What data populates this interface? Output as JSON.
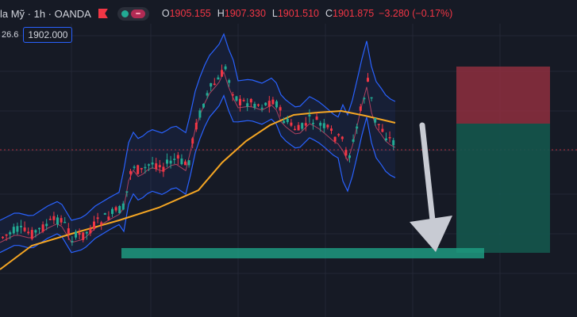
{
  "header": {
    "symbol_title": "la Mỹ · 1h · OANDA",
    "ohlc": [
      {
        "key": "O",
        "value": "1905.155"
      },
      {
        "key": "H",
        "value": "1907.330"
      },
      {
        "key": "L",
        "value": "1901.510"
      },
      {
        "key": "C",
        "value": "1901.875"
      }
    ],
    "change": "−3.280 (−0.17%)",
    "left_value": "26.6",
    "price_input": "1902.000"
  },
  "colors": {
    "background": "#161a25",
    "up": "#22ab94",
    "down": "#f23645",
    "bollinger": "#2962ff",
    "ma": "#f5a623",
    "stop_zone": "#8e2f3e",
    "target_zone": "#14574d",
    "support": "#1d9a80",
    "arrow": "#c8cbd3"
  },
  "icons": [
    "flag-icon",
    "status-pill-icon"
  ]
}
